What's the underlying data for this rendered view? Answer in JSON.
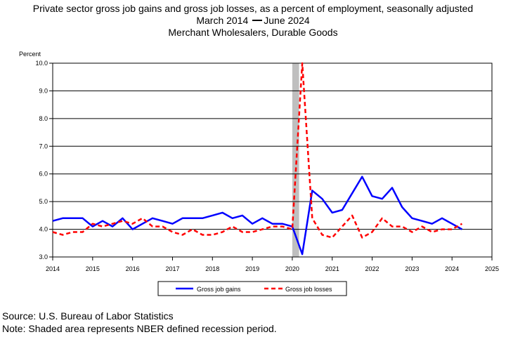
{
  "title": "Private sector gross job gains and gross job losses, as a percent of employment, seasonally adjusted",
  "subtitle_start": "March 2014",
  "subtitle_end": "June 2024",
  "subtitle2": "Merchant Wholesalers, Durable Goods",
  "footer": {
    "source": "Source: U.S. Bureau of Labor Statistics",
    "note": "Note: Shaded area represents NBER defined recession period."
  },
  "colors": {
    "gains": "#0000ff",
    "losses": "#ff0000",
    "recession": "#bfbfbf"
  },
  "chart_data": {
    "type": "line",
    "ylabel": "Percent",
    "ylim": [
      3.0,
      10.0
    ],
    "yticks": [
      "3.0",
      "4.0",
      "5.0",
      "6.0",
      "7.0",
      "8.0",
      "9.0",
      "10.0"
    ],
    "xlim": [
      2014,
      2025
    ],
    "xticks": [
      "2014",
      "2015",
      "2016",
      "2017",
      "2018",
      "2019",
      "2020",
      "2021",
      "2022",
      "2023",
      "2024",
      "2025"
    ],
    "grid": "horizontal",
    "legend_position": "bottom",
    "recession": {
      "start": 2020.0,
      "end": 2020.17
    },
    "x": [
      2014.0,
      2014.25,
      2014.5,
      2014.75,
      2015.0,
      2015.25,
      2015.5,
      2015.75,
      2016.0,
      2016.25,
      2016.5,
      2016.75,
      2017.0,
      2017.25,
      2017.5,
      2017.75,
      2018.0,
      2018.25,
      2018.5,
      2018.75,
      2019.0,
      2019.25,
      2019.5,
      2019.75,
      2020.0,
      2020.25,
      2020.5,
      2020.75,
      2021.0,
      2021.25,
      2021.5,
      2021.75,
      2022.0,
      2022.25,
      2022.5,
      2022.75,
      2023.0,
      2023.25,
      2023.5,
      2023.75,
      2024.0,
      2024.25
    ],
    "series": [
      {
        "name": "Gross job gains",
        "values": [
          4.3,
          4.4,
          4.4,
          4.4,
          4.1,
          4.3,
          4.1,
          4.4,
          4.0,
          4.2,
          4.4,
          4.3,
          4.2,
          4.4,
          4.4,
          4.4,
          4.5,
          4.6,
          4.4,
          4.5,
          4.2,
          4.4,
          4.2,
          4.2,
          4.1,
          3.1,
          5.4,
          5.1,
          4.6,
          4.7,
          5.3,
          5.9,
          5.2,
          5.1,
          5.5,
          4.8,
          4.4,
          4.3,
          4.2,
          4.4,
          4.2,
          4.0
        ]
      },
      {
        "name": "Gross job losses",
        "values": [
          3.9,
          3.8,
          3.9,
          3.9,
          4.2,
          4.1,
          4.2,
          4.3,
          4.2,
          4.4,
          4.1,
          4.1,
          3.9,
          3.8,
          4.0,
          3.8,
          3.8,
          3.9,
          4.1,
          3.9,
          3.9,
          4.0,
          4.1,
          4.1,
          4.0,
          10.0,
          4.4,
          3.8,
          3.7,
          4.1,
          4.5,
          3.7,
          3.9,
          4.4,
          4.1,
          4.1,
          3.9,
          4.1,
          3.9,
          4.0,
          4.0,
          4.2
        ]
      }
    ]
  }
}
